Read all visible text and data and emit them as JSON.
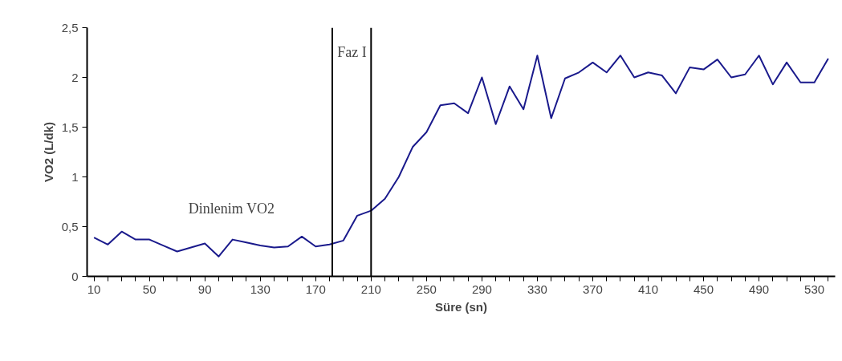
{
  "chart_data": {
    "type": "line",
    "xlabel": "Süre (sn)",
    "ylabel": "VO2 (L/dk)",
    "x": [
      10,
      20,
      30,
      40,
      50,
      60,
      70,
      80,
      90,
      100,
      110,
      120,
      130,
      140,
      150,
      160,
      170,
      180,
      190,
      200,
      210,
      220,
      230,
      240,
      250,
      260,
      270,
      280,
      290,
      300,
      310,
      320,
      330,
      340,
      350,
      360,
      370,
      380,
      390,
      400,
      410,
      420,
      430,
      440,
      450,
      460,
      470,
      480,
      490,
      500,
      510,
      520,
      530,
      540
    ],
    "series": [
      {
        "color": "#1a1a8c",
        "values": [
          0.39,
          0.32,
          0.45,
          0.37,
          0.37,
          0.31,
          0.25,
          0.29,
          0.33,
          0.2,
          0.37,
          0.34,
          0.31,
          0.29,
          0.3,
          0.4,
          0.3,
          0.32,
          0.36,
          0.61,
          0.66,
          0.78,
          1.0,
          1.3,
          1.45,
          1.72,
          1.74,
          1.64,
          2.0,
          1.53,
          1.91,
          1.68,
          2.22,
          1.59,
          1.99,
          2.05,
          2.15,
          2.05,
          2.22,
          2.0,
          2.05,
          2.02,
          1.84,
          2.1,
          2.08,
          2.18,
          2.0,
          2.03,
          2.22,
          1.93,
          2.15,
          1.95,
          1.95,
          2.19
        ]
      }
    ],
    "xlim": [
      5,
      545
    ],
    "xticks": [
      10,
      {
        "value": 20,
        "label": null
      },
      {
        "value": 30,
        "label": null
      },
      {
        "value": 40,
        "label": null
      },
      50,
      {
        "value": 60,
        "label": null
      },
      {
        "value": 70,
        "label": null
      },
      {
        "value": 80,
        "label": null
      },
      90,
      {
        "value": 100,
        "label": null
      },
      {
        "value": 110,
        "label": null
      },
      {
        "value": 120,
        "label": null
      },
      130,
      {
        "value": 140,
        "label": null
      },
      {
        "value": 150,
        "label": null
      },
      {
        "value": 160,
        "label": null
      },
      170,
      {
        "value": 180,
        "label": null
      },
      {
        "value": 190,
        "label": null
      },
      {
        "value": 200,
        "label": null
      },
      210,
      {
        "value": 220,
        "label": null
      },
      {
        "value": 230,
        "label": null
      },
      {
        "value": 240,
        "label": null
      },
      250,
      {
        "value": 260,
        "label": null
      },
      {
        "value": 270,
        "label": null
      },
      {
        "value": 280,
        "label": null
      },
      290,
      {
        "value": 300,
        "label": null
      },
      {
        "value": 310,
        "label": null
      },
      {
        "value": 320,
        "label": null
      },
      330,
      {
        "value": 340,
        "label": null
      },
      {
        "value": 350,
        "label": null
      },
      {
        "value": 360,
        "label": null
      },
      370,
      {
        "value": 380,
        "label": null
      },
      {
        "value": 390,
        "label": null
      },
      {
        "value": 400,
        "label": null
      },
      410,
      {
        "value": 420,
        "label": null
      },
      {
        "value": 430,
        "label": null
      },
      {
        "value": 440,
        "label": null
      },
      450,
      {
        "value": 460,
        "label": null
      },
      {
        "value": 470,
        "label": null
      },
      {
        "value": 480,
        "label": null
      },
      490,
      {
        "value": 500,
        "label": null
      },
      {
        "value": 510,
        "label": null
      },
      {
        "value": 520,
        "label": null
      },
      530,
      {
        "value": 540,
        "label": null
      }
    ],
    "ylim": [
      0,
      2.5
    ],
    "yticks": [
      0,
      {
        "value": 0.5,
        "label": "0,5"
      },
      1,
      {
        "value": 1.5,
        "label": "1,5"
      },
      2,
      {
        "value": 2.5,
        "label": "2,5"
      }
    ],
    "ref_lines": [
      {
        "axis": "x",
        "value": 182,
        "color": "#000000"
      },
      {
        "axis": "x",
        "value": 210,
        "color": "#000000"
      }
    ],
    "annotations": [
      "Faz I",
      "Dinlenim VO2"
    ],
    "grid": false,
    "marker": "none",
    "line_style": "solid"
  }
}
